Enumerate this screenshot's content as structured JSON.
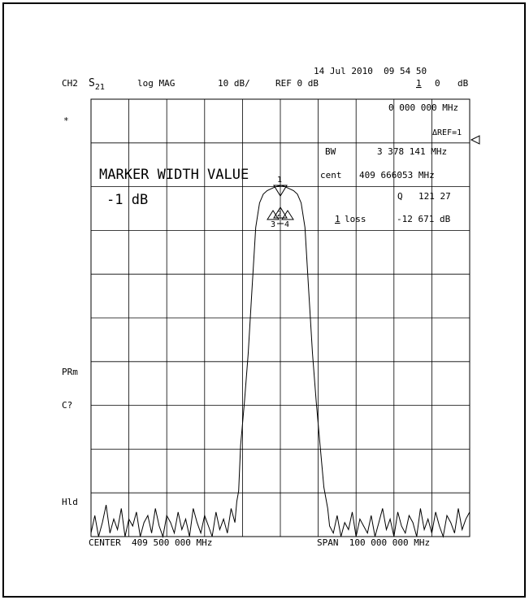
{
  "header": {
    "channel": "CH2",
    "param_base": "S",
    "param_sub": "21",
    "format": "log MAG",
    "scale": "10 dB/",
    "reference": "REF 0 dB",
    "datetime": "14 Jul 2010  09 54 50",
    "active_marker_num": "1",
    "active_marker_value": "0",
    "active_marker_unit": "dB"
  },
  "readouts": {
    "marker_freq": "0 000 000 MHz",
    "delta_ref": "ΔREF=1",
    "bw_label": "BW",
    "bw_value": "3 378 141 MHz",
    "cent_label": "cent",
    "cent_value": "409 666053 MHz",
    "q_label": "Q",
    "q_value": "121 27",
    "loss_marker": "1",
    "loss_label": "loss",
    "loss_value": "-12 671 dB"
  },
  "annotation": {
    "title": "MARKER WIDTH VALUE",
    "value": "-1 dB"
  },
  "left_labels": {
    "star": "*",
    "prm": "PRm",
    "cq": "C?",
    "hld": "Hld"
  },
  "footer": {
    "center": "CENTER  409 500 000 MHz",
    "span": "SPAN  100 000 000 MHz"
  },
  "markers": {
    "m1": "1",
    "m2": "2",
    "m3": "3",
    "m4": "4"
  },
  "chart_data": {
    "type": "line",
    "xlabel": "",
    "ylabel": "",
    "center_mhz": 409.5,
    "span_mhz": 100,
    "xlim": [
      359.5,
      459.5
    ],
    "ylim": [
      -100,
      0
    ],
    "grid": true,
    "series": [
      {
        "x": [
          359.5,
          360.5,
          361.5,
          362.5,
          363.5,
          364.5,
          365.5,
          366.5,
          367.5,
          368.5,
          369.5,
          370.5,
          371.5,
          372.5,
          373.5,
          374.5,
          375.5,
          376.5,
          377.5,
          378.5,
          379.5,
          380.5,
          381.5,
          382.5,
          383.5,
          384.5,
          385.5,
          386.5,
          387.5,
          388.5,
          389.5,
          390.5,
          391.5,
          392.5,
          393.5,
          394.5,
          395.5,
          396.5,
          397.5,
          398.0,
          398.5,
          399.0,
          400.0,
          401.0,
          402.0,
          403.0,
          404.0,
          405.0,
          406.0,
          407.0,
          408.0,
          409.0,
          409.67,
          410.3,
          411.0,
          412.0,
          413.0,
          414.0,
          415.0,
          416.0,
          417.0,
          418.0,
          419.0,
          420.0,
          421.0,
          422.0,
          422.5,
          423.5,
          424.5,
          425.5,
          426.5,
          427.5,
          428.5,
          429.5,
          430.5,
          431.5,
          432.5,
          433.5,
          434.5,
          435.5,
          436.5,
          437.5,
          438.5,
          439.5,
          440.5,
          441.5,
          442.5,
          443.5,
          444.5,
          445.5,
          446.5,
          447.5,
          448.5,
          449.5,
          450.5,
          451.5,
          452.5,
          453.5,
          454.5,
          455.5,
          456.5,
          457.5,
          458.5,
          459.5
        ],
        "values": [
          -99,
          -94,
          -100,
          -96,
          -91,
          -99,
          -95,
          -98,
          -92,
          -100,
          -95,
          -97,
          -93,
          -100,
          -96,
          -94,
          -99,
          -92,
          -97,
          -100,
          -94,
          -96,
          -99,
          -93,
          -98,
          -95,
          -100,
          -92,
          -96,
          -99,
          -94,
          -97,
          -100,
          -93,
          -98,
          -95,
          -99,
          -92,
          -96,
          -90,
          -87,
          -74,
          -62,
          -48,
          -30,
          -12,
          -5,
          -2.5,
          -1.5,
          -1,
          -0.5,
          -0.2,
          0,
          -0.2,
          -0.5,
          -1,
          -1.5,
          -2.5,
          -5,
          -12,
          -30,
          -48,
          -62,
          -74,
          -86,
          -92,
          -97,
          -99,
          -94,
          -100,
          -96,
          -98,
          -93,
          -100,
          -95,
          -97,
          -99,
          -94,
          -100,
          -96,
          -92,
          -98,
          -95,
          -100,
          -93,
          -97,
          -99,
          -94,
          -96,
          -100,
          -92,
          -98,
          -95,
          -99,
          -93,
          -97,
          -100,
          -94,
          -96,
          -99,
          -92,
          -98,
          -95,
          -93
        ]
      }
    ]
  }
}
